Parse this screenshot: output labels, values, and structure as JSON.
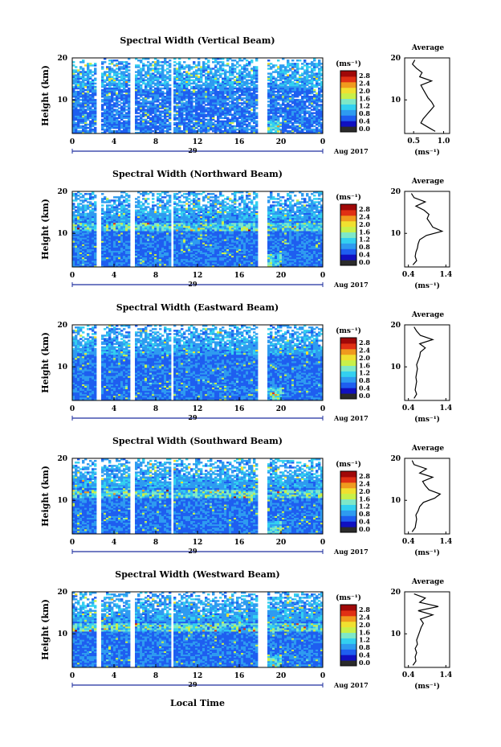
{
  "chart_data": {
    "type": "heatmap",
    "colors": {
      "scale": [
        "#2b2b2b",
        "#1010c0",
        "#1e5ef0",
        "#2e9bf0",
        "#33d0f0",
        "#7ee8c8",
        "#c8f04a",
        "#f0e030",
        "#f09a1e",
        "#e03014",
        "#a00808"
      ],
      "line": "#000000",
      "date_axis": "#1f2f9f"
    },
    "time_ticks": [
      "0",
      "4",
      "8",
      "12",
      "16",
      "20",
      "0"
    ],
    "date_center_label": "29",
    "date_right_label": "Aug 2017",
    "xlabel": "Local Time",
    "ylabel": "Height (km)",
    "colorbar_unit_label": "(ms⁻¹)",
    "colorbar_ticks": [
      "2.8",
      "2.4",
      "2.0",
      "1.6",
      "1.2",
      "0.8",
      "0.4",
      "0.0"
    ],
    "average_title": "Average",
    "average_unit_label": "(ms⁻¹)",
    "panels": [
      {
        "title": "Spectral Width (Vertical Beam)",
        "height_ticks": [
          "20",
          "10"
        ],
        "avg_xticks": [
          "0.5",
          "1.0"
        ],
        "avg_xlim": [
          0.35,
          1.1
        ],
        "avg_height_km": [
          2.5,
          3.5,
          4.5,
          5.5,
          6.5,
          7.5,
          8.5,
          9.5,
          10.5,
          11.5,
          12.5,
          13.5,
          14.5,
          15.5,
          16.5,
          17.5,
          18.5,
          19.5
        ],
        "avg_width": [
          0.86,
          0.74,
          0.62,
          0.66,
          0.72,
          0.78,
          0.84,
          0.8,
          0.74,
          0.7,
          0.66,
          0.62,
          0.8,
          0.6,
          0.64,
          0.55,
          0.48,
          0.52
        ]
      },
      {
        "title": "Spectral Width (Northward Beam)",
        "height_ticks": [
          "20",
          "10"
        ],
        "avg_xticks": [
          "0.4",
          "1.4"
        ],
        "avg_xlim": [
          0.3,
          1.5
        ],
        "avg_height_km": [
          2.5,
          3.5,
          4.5,
          5.5,
          6.5,
          7.5,
          8.5,
          9.5,
          10.5,
          11.5,
          12.5,
          13.5,
          14.5,
          15.5,
          16.5,
          17.5,
          18.5,
          19.5
        ],
        "avg_width": [
          0.52,
          0.62,
          0.58,
          0.6,
          0.64,
          0.66,
          0.7,
          0.88,
          1.3,
          1.05,
          0.98,
          0.9,
          0.95,
          0.82,
          0.6,
          0.85,
          0.55,
          0.48
        ]
      },
      {
        "title": "Spectral Width (Eastward Beam)",
        "height_ticks": [
          "20",
          "10"
        ],
        "avg_xticks": [
          "0.4",
          "1.4"
        ],
        "avg_xlim": [
          0.3,
          1.5
        ],
        "avg_height_km": [
          2.5,
          3.5,
          4.5,
          5.5,
          6.5,
          7.5,
          8.5,
          9.5,
          10.5,
          11.5,
          12.5,
          13.5,
          14.5,
          15.5,
          16.5,
          17.5,
          18.5,
          19.5
        ],
        "avg_width": [
          0.55,
          0.62,
          0.58,
          0.6,
          0.62,
          0.6,
          0.62,
          0.64,
          0.62,
          0.66,
          0.7,
          0.72,
          0.85,
          0.7,
          1.05,
          0.72,
          0.62,
          0.55
        ]
      },
      {
        "title": "Spectral Width (Southward Beam)",
        "height_ticks": [
          "20",
          "10"
        ],
        "avg_xticks": [
          "0.4",
          "1.4"
        ],
        "avg_xlim": [
          0.3,
          1.5
        ],
        "avg_height_km": [
          2.5,
          3.5,
          4.5,
          5.5,
          6.5,
          7.5,
          8.5,
          9.5,
          10.5,
          11.5,
          12.5,
          13.5,
          14.5,
          15.5,
          16.5,
          17.5,
          18.5,
          19.5
        ],
        "avg_width": [
          0.5,
          0.58,
          0.6,
          0.62,
          0.6,
          0.66,
          0.7,
          0.8,
          1.1,
          1.25,
          0.95,
          0.85,
          0.78,
          1.05,
          0.7,
          0.88,
          0.55,
          0.5
        ]
      },
      {
        "title": "Spectral Width (Westward Beam)",
        "height_ticks": [
          "20",
          "10"
        ],
        "avg_xticks": [
          "0.4",
          "1.4"
        ],
        "avg_xlim": [
          0.3,
          1.5
        ],
        "avg_height_km": [
          2.5,
          3.5,
          4.5,
          5.5,
          6.5,
          7.5,
          8.5,
          9.5,
          10.5,
          11.5,
          12.5,
          13.5,
          14.5,
          15.5,
          16.5,
          17.5,
          18.5,
          19.5
        ],
        "avg_width": [
          0.52,
          0.6,
          0.58,
          0.62,
          0.58,
          0.64,
          0.62,
          0.66,
          0.7,
          0.74,
          0.8,
          0.72,
          1.05,
          0.66,
          1.2,
          0.7,
          0.85,
          0.55
        ]
      }
    ],
    "xlim": [
      0,
      24
    ],
    "ylim": [
      2,
      20
    ],
    "data_gaps_hours": [
      [
        2.4,
        2.8
      ],
      [
        5.6,
        5.9
      ],
      [
        9.5,
        9.8
      ],
      [
        17.7,
        18.6
      ]
    ]
  }
}
